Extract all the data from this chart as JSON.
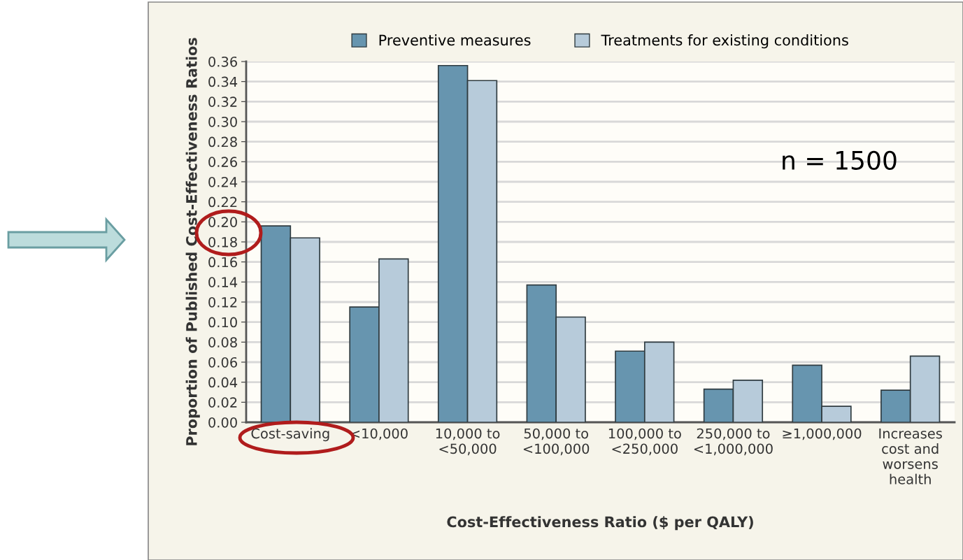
{
  "chart_data": {
    "type": "bar",
    "xlabel": "Cost-Effectiveness Ratio ($ per QALY)",
    "ylabel": "Proportion of Published Cost-Effectiveness Ratios",
    "categories": [
      "Cost-saving",
      "<10,000",
      "10,000 to\n<50,000",
      "50,000 to\n<100,000",
      "100,000 to\n<250,000",
      "250,000 to\n<1,000,000",
      "≥1,000,000",
      "Increases\ncost and\nworsens\nhealth"
    ],
    "series": [
      {
        "name": "Preventive measures",
        "color": "#6795af",
        "values": [
          0.196,
          0.115,
          0.356,
          0.137,
          0.071,
          0.033,
          0.057,
          0.032
        ]
      },
      {
        "name": "Treatments for existing conditions",
        "color": "#b7cbda",
        "values": [
          0.184,
          0.163,
          0.341,
          0.105,
          0.08,
          0.042,
          0.016,
          0.066
        ]
      }
    ],
    "ylim": [
      0,
      0.36
    ],
    "yticks": [
      {
        "value": 0,
        "label": "0.00"
      },
      {
        "value": 0.02,
        "label": "0.02"
      },
      {
        "value": 0.04,
        "label": "0.04"
      },
      {
        "value": 0.06,
        "label": "0.06"
      },
      {
        "value": 0.08,
        "label": "0.08"
      },
      {
        "value": 0.1,
        "label": "0.10"
      },
      {
        "value": 0.12,
        "label": "0.12"
      },
      {
        "value": 0.14,
        "label": "0.14"
      },
      {
        "value": 0.16,
        "label": "0.16"
      },
      {
        "value": 0.18,
        "label": "0.18"
      },
      {
        "value": 0.2,
        "label": "0.20"
      },
      {
        "value": 0.22,
        "label": "0.22"
      },
      {
        "value": 0.24,
        "label": "0.24"
      },
      {
        "value": 0.26,
        "label": "0.26"
      },
      {
        "value": 0.28,
        "label": "0.28"
      },
      {
        "value": 0.3,
        "label": "0.30"
      },
      {
        "value": 0.32,
        "label": "0.32"
      },
      {
        "value": 0.34,
        "label": "0.34"
      },
      {
        "value": 0.36,
        "label": "0.36"
      }
    ],
    "grid": "y",
    "legend": "top",
    "annotations": [
      "n = 1500"
    ]
  }
}
